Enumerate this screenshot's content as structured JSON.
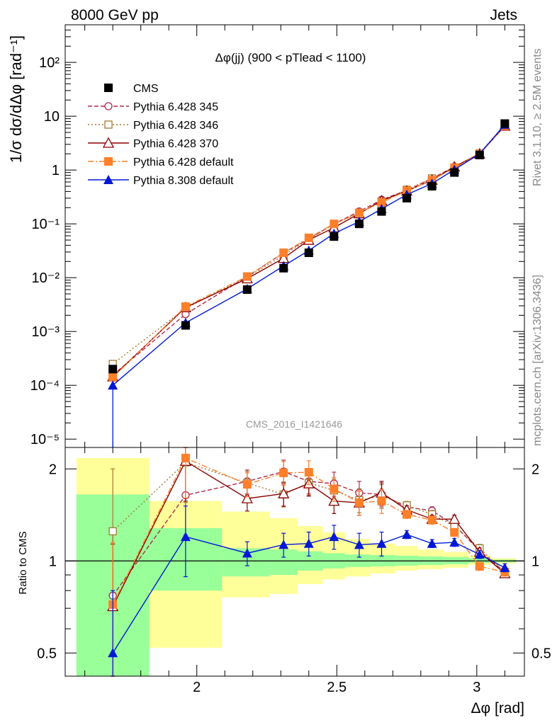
{
  "header": {
    "left": "8000 GeV pp",
    "right": "Jets"
  },
  "side_text": {
    "rivet": "Rivet 3.1.10, ≥ 2.5M events",
    "mcplots": "mcplots.cern.ch [arXiv:1306.3436]"
  },
  "plot_title": "Δφ(jj) (900 < pTlead <  1100)",
  "analysis_id": "CMS_2016_I1421646",
  "colors": {
    "cms": "#000000",
    "p345": "#b22a4a",
    "p346": "#a07a30",
    "p370": "#8b0000",
    "p6def": "#ff7f2a",
    "p8def": "#0018d6",
    "band_green": "#99ff99",
    "band_yellow": "#ffff99"
  },
  "chart_data": [
    {
      "type": "line",
      "name": "main",
      "ylabel": "1/σ dσ/dΔφ [rad⁻¹]",
      "yscale": "log",
      "ylim": [
        7e-06,
        500
      ],
      "xlim": [
        1.53,
        3.17
      ],
      "y_tick_labels": [
        "10⁻⁵",
        "10⁻⁴",
        "10⁻³",
        "10⁻²",
        "10⁻¹",
        "1",
        "10",
        "10²"
      ],
      "x": [
        1.7,
        1.96,
        2.18,
        2.31,
        2.4,
        2.49,
        2.58,
        2.66,
        2.75,
        2.84,
        2.92,
        3.01,
        3.1
      ],
      "series": [
        {
          "name": "CMS",
          "marker": "square-filled",
          "color_key": "cms",
          "dash": "none",
          "values": [
            0.0002,
            0.0013,
            0.006,
            0.015,
            0.029,
            0.058,
            0.1,
            0.17,
            0.3,
            0.5,
            0.9,
            1.9,
            7.3
          ]
        },
        {
          "name": "Pythia 6.428 345",
          "marker": "circle-open",
          "color_key": "p345",
          "dash": "6,3",
          "values": [
            0.000155,
            0.0021,
            0.0105,
            0.029,
            0.052,
            0.1,
            0.17,
            0.28,
            0.42,
            0.7,
            1.15,
            2.0,
            6.8
          ]
        },
        {
          "name": "Pythia 6.428 346",
          "marker": "square-open",
          "color_key": "p346",
          "dash": "2,3",
          "values": [
            0.00025,
            0.0027,
            0.0102,
            0.026,
            0.052,
            0.098,
            0.16,
            0.26,
            0.43,
            0.7,
            1.1,
            2.05,
            6.9
          ]
        },
        {
          "name": "Pythia 6.428 370",
          "marker": "triangle-open",
          "color_key": "p370",
          "dash": "none",
          "values": [
            0.000145,
            0.0028,
            0.0096,
            0.023,
            0.05,
            0.085,
            0.155,
            0.27,
            0.41,
            0.65,
            1.15,
            2.0,
            6.6
          ]
        },
        {
          "name": "Pythia 6.428 default",
          "marker": "square-filled",
          "color_key": "p6def",
          "dash": "8,3,2,3",
          "values": [
            0.00014,
            0.0029,
            0.0105,
            0.029,
            0.055,
            0.1,
            0.16,
            0.25,
            0.41,
            0.65,
            1.1,
            2.0,
            6.7
          ]
        },
        {
          "name": "Pythia 8.308 default",
          "marker": "triangle-filled",
          "color_key": "p8def",
          "dash": "none",
          "values": [
            0.0001,
            0.00145,
            0.0062,
            0.0165,
            0.032,
            0.066,
            0.11,
            0.19,
            0.35,
            0.56,
            1.02,
            2.0,
            7.0
          ]
        }
      ]
    },
    {
      "type": "line",
      "name": "ratio",
      "xlabel": "Δφ [rad]",
      "ylabel": "Ratio to CMS",
      "yscale": "log",
      "ylim": [
        0.42,
        2.35
      ],
      "y_ticks": [
        0.5,
        1,
        2
      ],
      "x_ticks": [
        2,
        2.5,
        3
      ],
      "reference_line": 1,
      "x": [
        1.7,
        1.96,
        2.18,
        2.31,
        2.4,
        2.49,
        2.58,
        2.66,
        2.75,
        2.84,
        2.92,
        3.01,
        3.1
      ],
      "bands": {
        "bin_edges": [
          1.57,
          1.83,
          2.09,
          2.26,
          2.36,
          2.45,
          2.53,
          2.62,
          2.71,
          2.79,
          2.88,
          2.97,
          3.05,
          3.14
        ],
        "green_low": [
          0.42,
          0.8,
          0.89,
          0.9,
          0.93,
          0.945,
          0.955,
          0.96,
          0.965,
          0.97,
          0.975,
          0.985,
          0.99
        ],
        "green_high": [
          1.65,
          1.28,
          1.1,
          1.09,
          1.075,
          1.06,
          1.05,
          1.045,
          1.04,
          1.035,
          1.03,
          1.02,
          1.01
        ],
        "yellow_low": [
          0.42,
          0.52,
          0.76,
          0.78,
          0.84,
          0.87,
          0.89,
          0.91,
          0.93,
          0.94,
          0.95,
          0.97,
          0.98
        ],
        "yellow_high": [
          2.17,
          1.57,
          1.45,
          1.38,
          1.3,
          1.24,
          1.18,
          1.14,
          1.12,
          1.09,
          1.07,
          1.04,
          1.02
        ]
      },
      "series": [
        {
          "name": "Pythia 6.428 345",
          "marker": "circle-open",
          "color_key": "p345",
          "dash": "6,3",
          "values": [
            0.77,
            1.64,
            1.82,
            1.96,
            1.82,
            1.79,
            1.67,
            1.65,
            1.5,
            1.46,
            1.31,
            1.08,
            0.92
          ]
        },
        {
          "name": "Pythia 6.428 346",
          "marker": "square-open",
          "color_key": "p346",
          "dash": "2,3",
          "values": [
            1.25,
            2.1,
            1.8,
            1.65,
            1.8,
            1.7,
            1.58,
            1.63,
            1.52,
            1.42,
            1.3,
            1.1,
            0.92
          ]
        },
        {
          "name": "Pythia 6.428 370",
          "marker": "triangle-open",
          "color_key": "p370",
          "dash": "none",
          "values": [
            0.71,
            2.12,
            1.6,
            1.66,
            1.79,
            1.57,
            1.55,
            1.67,
            1.47,
            1.37,
            1.37,
            1.07,
            0.91
          ]
        },
        {
          "name": "Pythia 6.428 default",
          "marker": "square-filled",
          "color_key": "p6def",
          "dash": "8,3,2,3",
          "values": [
            0.72,
            2.17,
            1.78,
            1.94,
            1.95,
            1.72,
            1.55,
            1.57,
            1.42,
            1.36,
            1.24,
            0.96,
            0.92
          ]
        },
        {
          "name": "Pythia 8.308 default",
          "marker": "triangle-filled",
          "color_key": "p8def",
          "dash": "none",
          "values": [
            0.5,
            1.2,
            1.06,
            1.13,
            1.14,
            1.2,
            1.13,
            1.14,
            1.22,
            1.14,
            1.15,
            1.05,
            0.95
          ]
        }
      ]
    }
  ]
}
